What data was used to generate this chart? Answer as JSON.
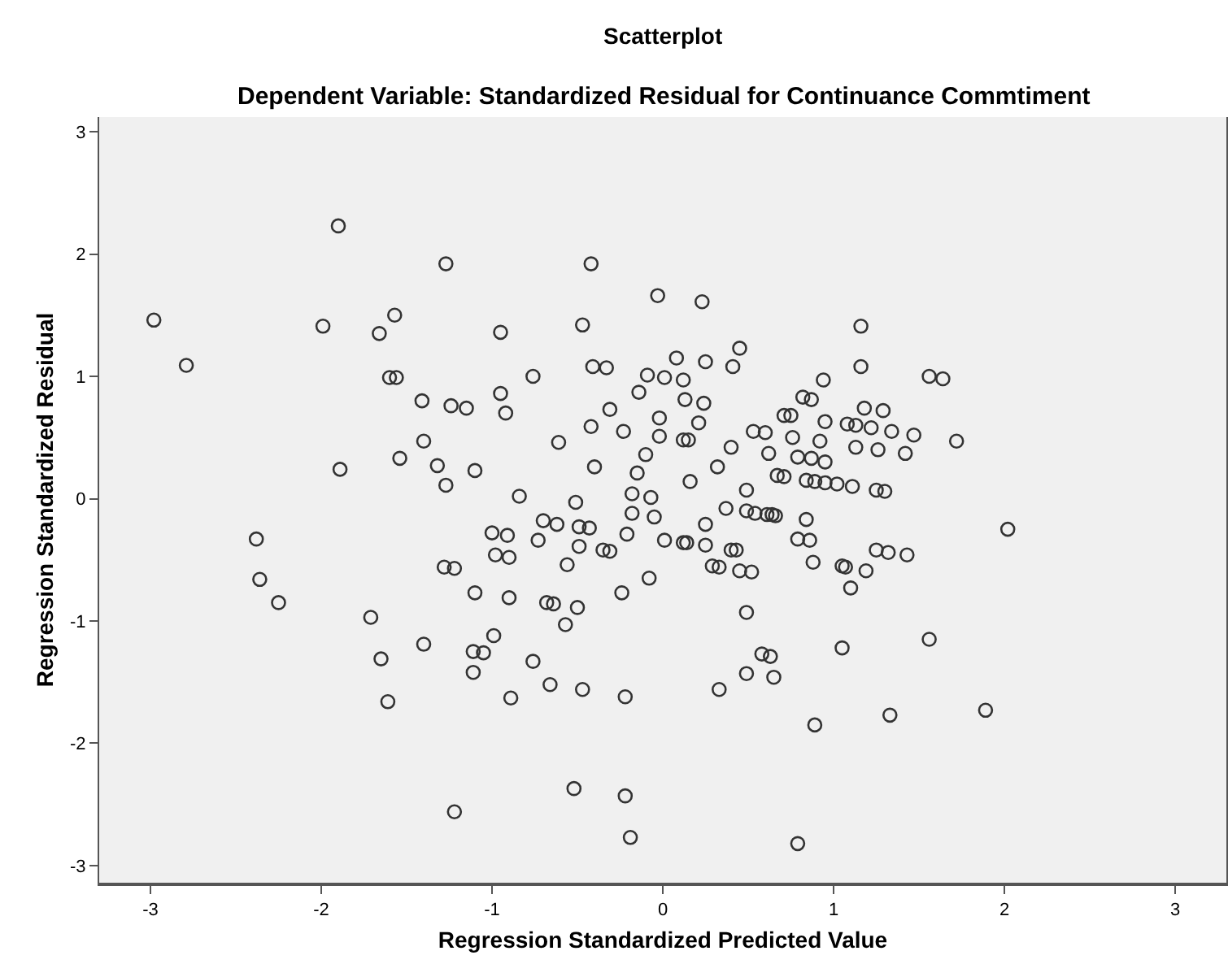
{
  "chart_data": {
    "type": "scatter",
    "title": "Scatterplot",
    "subtitle": "Dependent Variable: Standardized Residual for Continuance Commtiment",
    "xlabel": "Regression Standardized Predicted Value",
    "ylabel": "Regression Standardized Residual",
    "x": [
      -1.9,
      -1.27,
      -2.98,
      -1.99,
      -1.57,
      -1.66,
      -2.79,
      -1.6,
      -1.56,
      -1.41,
      -1.24,
      -1.15,
      -1.4,
      -1.54,
      -1.32,
      -1.89,
      -1.27,
      -0.42,
      -0.03,
      0.23,
      -0.95,
      -0.47,
      0.45,
      0.08,
      0.25,
      0.41,
      -0.41,
      -0.33,
      -0.76,
      -0.09,
      0.01,
      0.12,
      -0.95,
      -0.92,
      -0.14,
      0.13,
      0.24,
      -0.31,
      -0.02,
      0.21,
      -0.42,
      -0.23,
      -0.61,
      -0.02,
      0.12,
      0.15,
      0.4,
      -0.1,
      -1.1,
      -0.4,
      0.32,
      -0.15,
      0.16,
      0.49,
      -0.84,
      -0.18,
      -0.07,
      -0.51,
      0.94,
      0.82,
      0.87,
      0.71,
      0.75,
      0.95,
      1.08,
      0.53,
      0.6,
      0.76,
      0.92,
      0.62,
      0.79,
      0.87,
      0.95,
      0.67,
      0.71,
      0.84,
      0.89,
      0.95,
      1.02,
      1.16,
      1.16,
      1.56,
      1.64,
      1.18,
      1.29,
      1.13,
      1.22,
      1.34,
      1.47,
      1.72,
      1.13,
      1.26,
      1.42,
      1.11,
      1.25,
      1.3,
      -2.38,
      -2.36,
      -2.25,
      -1.71,
      -1.65,
      -1.61,
      -1.4,
      -1.28,
      -1.22,
      -1.1,
      -1.11,
      -1.05,
      -1.11,
      -1.22,
      -0.18,
      -0.05,
      -0.7,
      -0.62,
      -1.0,
      -0.91,
      -0.73,
      -0.49,
      -0.43,
      -0.49,
      -0.35,
      -0.31,
      -0.21,
      -0.98,
      -0.9,
      -0.56,
      0.01,
      0.12,
      0.14,
      0.25,
      0.25,
      0.37,
      0.49,
      0.54,
      0.61,
      0.64,
      0.66,
      0.4,
      0.43,
      0.29,
      0.33,
      0.45,
      0.52,
      0.84,
      0.79,
      0.86,
      0.88,
      1.05,
      1.07,
      1.1,
      -0.9,
      -0.68,
      -0.64,
      -0.5,
      -0.57,
      -0.24,
      -0.08,
      -0.99,
      -0.76,
      -0.66,
      -0.47,
      -0.89,
      -0.22,
      0.33,
      0.49,
      0.49,
      0.58,
      0.63,
      0.65,
      0.89,
      1.05,
      -0.52,
      -0.22,
      -0.19,
      0.79,
      2.02,
      1.25,
      1.32,
      1.43,
      1.19,
      1.56,
      1.33,
      1.89
    ],
    "values": [
      2.23,
      1.92,
      1.46,
      1.41,
      1.5,
      1.35,
      1.09,
      0.99,
      0.99,
      0.8,
      0.76,
      0.74,
      0.47,
      0.33,
      0.27,
      0.24,
      0.11,
      1.92,
      1.66,
      1.61,
      1.36,
      1.42,
      1.23,
      1.15,
      1.12,
      1.08,
      1.08,
      1.07,
      1.0,
      1.01,
      0.99,
      0.97,
      0.86,
      0.7,
      0.87,
      0.81,
      0.78,
      0.73,
      0.66,
      0.62,
      0.59,
      0.55,
      0.46,
      0.51,
      0.48,
      0.48,
      0.42,
      0.36,
      0.23,
      0.26,
      0.26,
      0.21,
      0.14,
      0.07,
      0.02,
      0.04,
      0.01,
      -0.03,
      0.97,
      0.83,
      0.81,
      0.68,
      0.68,
      0.63,
      0.61,
      0.55,
      0.54,
      0.5,
      0.47,
      0.37,
      0.34,
      0.33,
      0.3,
      0.19,
      0.18,
      0.15,
      0.14,
      0.13,
      0.12,
      1.41,
      1.08,
      1.0,
      0.98,
      0.74,
      0.72,
      0.6,
      0.58,
      0.55,
      0.52,
      0.47,
      0.42,
      0.4,
      0.37,
      0.1,
      0.07,
      0.06,
      -0.33,
      -0.66,
      -0.85,
      -0.97,
      -1.31,
      -1.66,
      -1.19,
      -0.56,
      -0.57,
      -0.77,
      -1.25,
      -1.26,
      -1.42,
      -2.56,
      -0.12,
      -0.15,
      -0.18,
      -0.21,
      -0.28,
      -0.3,
      -0.34,
      -0.23,
      -0.24,
      -0.39,
      -0.42,
      -0.43,
      -0.29,
      -0.46,
      -0.48,
      -0.54,
      -0.34,
      -0.36,
      -0.36,
      -0.21,
      -0.38,
      -0.08,
      -0.1,
      -0.12,
      -0.13,
      -0.13,
      -0.14,
      -0.42,
      -0.42,
      -0.55,
      -0.56,
      -0.59,
      -0.6,
      -0.17,
      -0.33,
      -0.34,
      -0.52,
      -0.55,
      -0.56,
      -0.73,
      -0.81,
      -0.85,
      -0.86,
      -0.89,
      -1.03,
      -0.77,
      -0.65,
      -1.12,
      -1.33,
      -1.52,
      -1.56,
      -1.63,
      -1.62,
      -1.56,
      -0.93,
      -1.43,
      -1.27,
      -1.29,
      -1.46,
      -1.85,
      -1.22,
      -2.37,
      -2.43,
      -2.77,
      -2.82,
      -0.25,
      -0.42,
      -0.44,
      -0.46,
      -0.59,
      -1.15,
      -1.77,
      -1.73
    ],
    "color": "#333333",
    "marker": "circle",
    "xlim": [
      -3.3,
      3.3
    ],
    "ylim": [
      -3.14,
      3.12
    ],
    "xticks": [
      -3,
      -2,
      -1,
      0,
      1,
      2,
      3
    ],
    "yticks": [
      -3,
      -2,
      -1,
      0,
      1,
      2,
      3
    ]
  }
}
